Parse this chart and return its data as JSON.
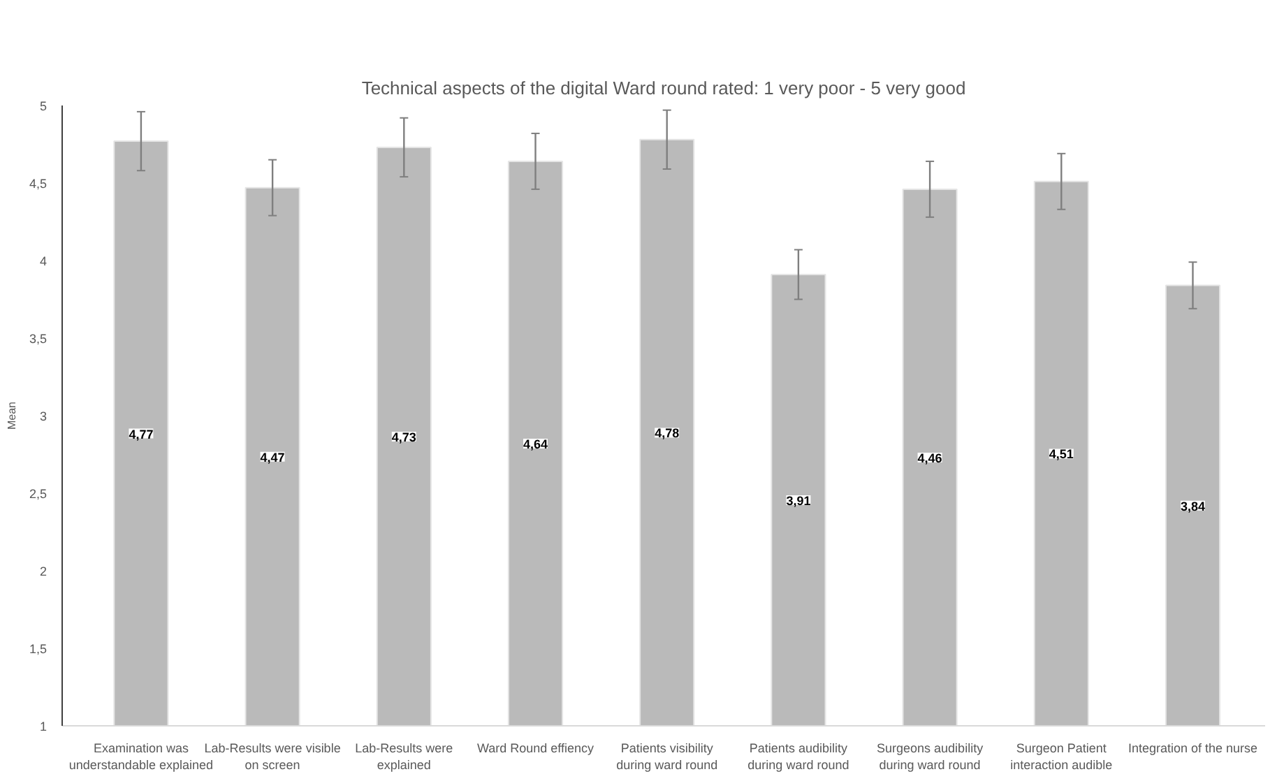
{
  "chart_data": {
    "type": "bar",
    "title": "Technical aspects of the digital Ward round rated: 1 very poor - 5 very good",
    "ylabel": "Mean",
    "categories": [
      "Examination was understandable explained",
      "Lab-Results were visible on screen",
      "Lab-Results were explained",
      "Ward Round effiency",
      "Patients visibility during ward round",
      "Patients audibility during ward round",
      "Surgeons audibility during ward round",
      "Surgeon Patient interaction audible",
      "Integration of the nurse"
    ],
    "values": [
      4.77,
      4.47,
      4.73,
      4.64,
      4.78,
      3.91,
      4.46,
      4.51,
      3.84
    ],
    "value_labels": [
      "4,77",
      "4,47",
      "4,73",
      "4,64",
      "4,78",
      "3,91",
      "4,46",
      "4,51",
      "3,84"
    ],
    "errors": [
      0.19,
      0.18,
      0.19,
      0.18,
      0.19,
      0.16,
      0.18,
      0.18,
      0.15
    ],
    "color": "#bababa",
    "ylim": [
      1,
      5
    ],
    "yticks": [
      1,
      {
        "value": 1.5,
        "label": "1,5"
      },
      2,
      {
        "value": 2.5,
        "label": "2,5"
      },
      3,
      {
        "value": 3.5,
        "label": "3,5"
      },
      4,
      {
        "value": 4.5,
        "label": "4,5"
      },
      5
    ],
    "grid": false
  }
}
